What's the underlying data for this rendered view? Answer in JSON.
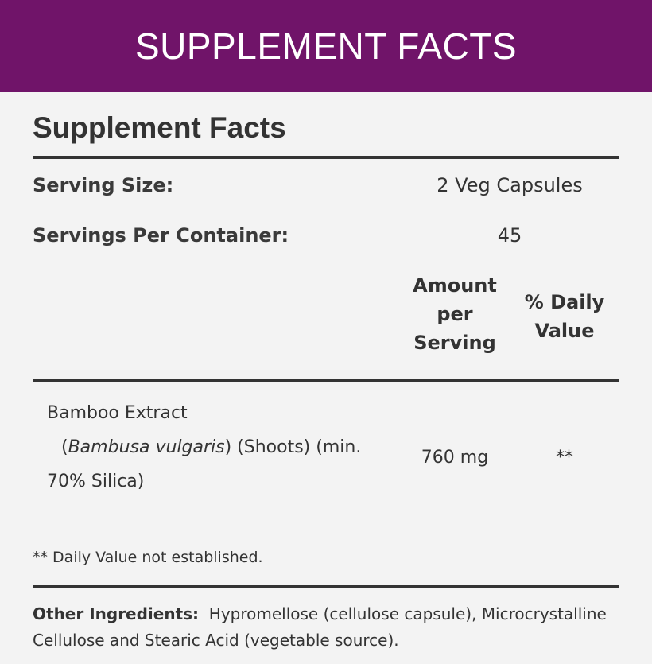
{
  "banner": {
    "title": "SUPPLEMENT FACTS"
  },
  "facts": {
    "title": "Supplement Facts",
    "serving_size_label": "Serving Size:",
    "serving_size_value": "2 Veg Capsules",
    "servings_per_container_label": "Servings Per Container:",
    "servings_per_container_value": "45",
    "columns": {
      "amount": [
        "Amount",
        "per",
        "Serving"
      ],
      "daily_value": [
        "% Daily",
        "Value"
      ]
    },
    "ingredients": [
      {
        "name_line1": "Bamboo Extract",
        "open_paren": "(",
        "latin_name": "Bambusa vulgaris",
        "name_line2_rest": ") (Shoots) (min.",
        "name_line3": "70% Silica)",
        "amount": "760 mg",
        "daily_value": "**"
      }
    ],
    "footnote": "** Daily Value not established.",
    "other_ingredients_label": "Other Ingredients:",
    "other_ingredients_text": "Hypromellose (cellulose capsule), Microcrystalline Cellulose and Stearic Acid (vegetable source)."
  },
  "colors": {
    "banner": "#701469",
    "background": "#f3f3f3",
    "text": "#333333"
  }
}
